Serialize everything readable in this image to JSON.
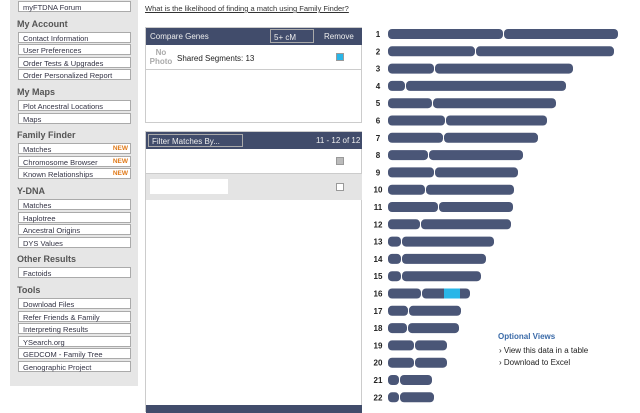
{
  "link": "What is the likelihood of finding a match using Family Finder?",
  "sidebar": [
    {
      "heading": null,
      "items": [
        {
          "label": "myFTDNA Forum"
        }
      ]
    },
    {
      "heading": "My Account",
      "items": [
        {
          "label": "Contact Information"
        },
        {
          "label": "User Preferences"
        },
        {
          "label": "Order Tests & Upgrades"
        },
        {
          "label": "Order Personalized Report"
        }
      ]
    },
    {
      "heading": "My Maps",
      "items": [
        {
          "label": "Plot Ancestral Locations"
        },
        {
          "label": "Maps"
        }
      ]
    },
    {
      "heading": "Family Finder",
      "items": [
        {
          "label": "Matches",
          "badge": "NEW"
        },
        {
          "label": "Chromosome Browser",
          "badge": "NEW"
        },
        {
          "label": "Known Relationships",
          "badge": "NEW"
        }
      ]
    },
    {
      "heading": "Y-DNA",
      "items": [
        {
          "label": "Matches"
        },
        {
          "label": "Haplotree"
        },
        {
          "label": "Ancestral Origins"
        },
        {
          "label": "DYS Values"
        }
      ]
    },
    {
      "heading": "Other Results",
      "items": [
        {
          "label": "Factoids"
        }
      ]
    },
    {
      "heading": "Tools",
      "items": [
        {
          "label": "Download Files"
        },
        {
          "label": "Refer Friends & Family"
        },
        {
          "label": "Interpreting Results"
        },
        {
          "label": "YSearch.org"
        },
        {
          "label": "GEDCOM - Family Tree"
        },
        {
          "label": "Genographic Project"
        }
      ]
    }
  ],
  "compare": {
    "title": "Compare Genes",
    "threshold": "5+ cM",
    "remove": "Remove",
    "photo": "No Photo",
    "segments": "Shared Segments: 13"
  },
  "filter": {
    "dropdown": "Filter Matches By...",
    "count": "11 - 12 of 12"
  },
  "chromosomes": [
    "1",
    "2",
    "3",
    "4",
    "5",
    "6",
    "7",
    "8",
    "9",
    "10",
    "11",
    "12",
    "13",
    "14",
    "15",
    "16",
    "17",
    "18",
    "19",
    "20",
    "21",
    "22"
  ],
  "optional_views": {
    "title": "Optional Views",
    "links": [
      "View this data in a table",
      "Download to Excel"
    ]
  }
}
